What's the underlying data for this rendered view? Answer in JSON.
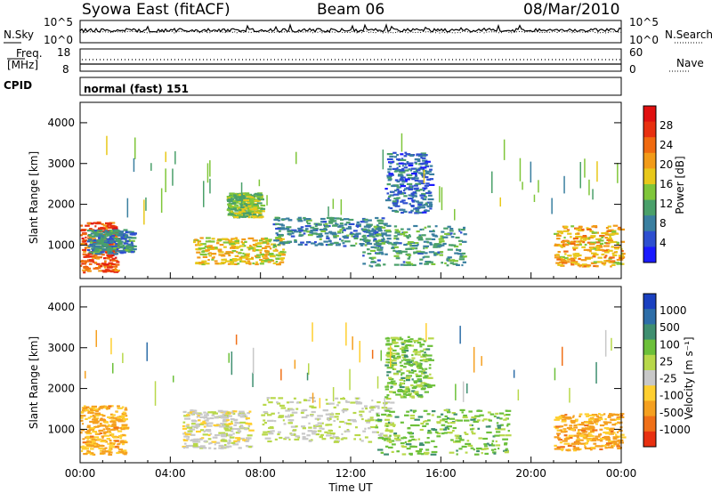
{
  "header": {
    "title": "Syowa East (fitACF)",
    "beam": "Beam 06",
    "date": "08/Mar/2010"
  },
  "noise_panel": {
    "left_label": "N.Sky",
    "right_label": "N.Search",
    "left_ticks": [
      "10^5",
      "10^0"
    ],
    "right_ticks": [
      "10^5",
      "10^0"
    ]
  },
  "freq_panel": {
    "left_label_1": "Freq.",
    "left_label_2": "[MHz]",
    "right_label": "Nave",
    "left_ticks": [
      "18",
      "8"
    ],
    "right_ticks": [
      "60",
      "0"
    ]
  },
  "cpid_panel": {
    "label": "CPID",
    "value": "normal (fast) 151"
  },
  "chart_data": [
    {
      "type": "heatmap",
      "panel": "power",
      "xlabel": "Time UT",
      "ylabel": "Slant Range [km]",
      "x_ticks": [
        "00:00",
        "04:00",
        "08:00",
        "12:00",
        "16:00",
        "20:00",
        "00:00"
      ],
      "y_ticks": [
        1000,
        2000,
        3000,
        4000
      ],
      "xlim": [
        0,
        24
      ],
      "ylim": [
        180,
        4500
      ],
      "colorbar": {
        "label": "Power [dB]",
        "ticks": [
          "4",
          "8",
          "12",
          "16",
          "20",
          "24",
          "28"
        ],
        "colors": [
          "#1a1aff",
          "#2e4fd0",
          "#3a7fa0",
          "#4aa06a",
          "#7fc63a",
          "#e8c81a",
          "#f29b18",
          "#f06a10",
          "#e83010",
          "#e01010"
        ]
      },
      "regions": [
        {
          "t": [
            0.0,
            1.6
          ],
          "r": [
            350,
            1600
          ],
          "v": 26
        },
        {
          "t": [
            0.3,
            2.3
          ],
          "r": [
            800,
            1400
          ],
          "v": 8
        },
        {
          "t": [
            5.0,
            9.0
          ],
          "r": [
            550,
            1200
          ],
          "v": 18
        },
        {
          "t": [
            6.5,
            8.0
          ],
          "r": [
            1700,
            2300
          ],
          "v": 14
        },
        {
          "t": [
            8.5,
            13.5
          ],
          "r": [
            1000,
            1700
          ],
          "v": 8
        },
        {
          "t": [
            13.5,
            15.5
          ],
          "r": [
            1800,
            3300
          ],
          "v": 6
        },
        {
          "t": [
            12.5,
            17.0
          ],
          "r": [
            500,
            1500
          ],
          "v": 10
        },
        {
          "t": [
            21.0,
            24.0
          ],
          "r": [
            500,
            1500
          ],
          "v": 20
        }
      ]
    },
    {
      "type": "heatmap",
      "panel": "velocity",
      "xlabel": "Time UT",
      "ylabel": "Slant Range [km]",
      "x_ticks": [
        "00:00",
        "04:00",
        "08:00",
        "12:00",
        "16:00",
        "20:00",
        "00:00"
      ],
      "y_ticks": [
        1000,
        2000,
        3000,
        4000
      ],
      "xlim": [
        0,
        24
      ],
      "ylim": [
        180,
        4500
      ],
      "colorbar": {
        "label": "Velocity [m s⁻¹]",
        "ticks": [
          "1000",
          "500",
          "100",
          "25",
          "-25",
          "-100",
          "-500",
          "-1000"
        ],
        "colors": [
          "#1a40c0",
          "#2e6ea8",
          "#3f8f70",
          "#6cc03a",
          "#b8d84a",
          "#c8c8c8",
          "#ffcf30",
          "#f5a020",
          "#f07018",
          "#e83010"
        ]
      },
      "regions": [
        {
          "t": [
            0.0,
            2.0
          ],
          "r": [
            400,
            1600
          ],
          "v": -500
        },
        {
          "t": [
            4.5,
            7.5
          ],
          "r": [
            550,
            1500
          ],
          "v": -100
        },
        {
          "t": [
            8.0,
            14.0
          ],
          "r": [
            700,
            1800
          ],
          "v": 0
        },
        {
          "t": [
            13.5,
            15.5
          ],
          "r": [
            1800,
            3300
          ],
          "v": 300
        },
        {
          "t": [
            13.0,
            19.0
          ],
          "r": [
            400,
            1500
          ],
          "v": 300
        },
        {
          "t": [
            21.0,
            24.0
          ],
          "r": [
            500,
            1400
          ],
          "v": -500
        }
      ]
    }
  ]
}
